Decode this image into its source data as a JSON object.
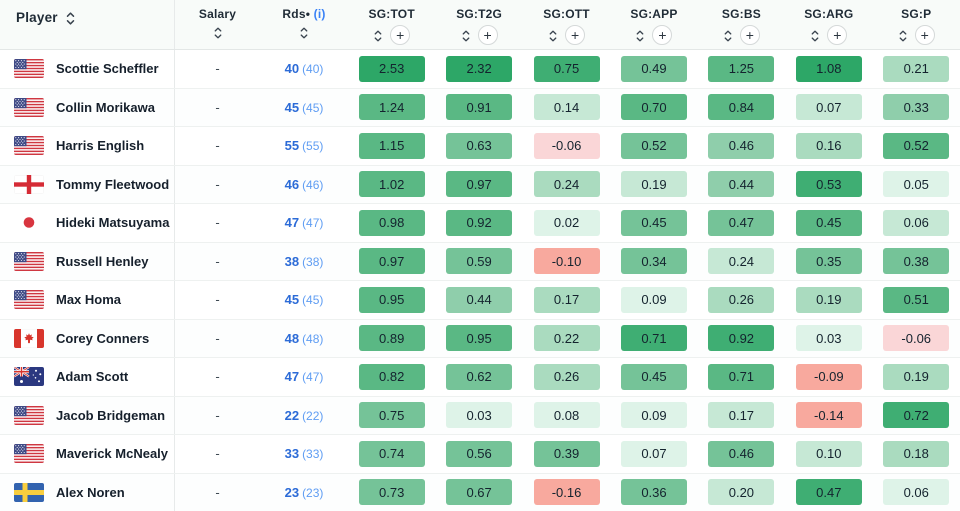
{
  "header": {
    "player_label": "Player",
    "salary_label": "Salary",
    "rds_label": "Rds•",
    "rds_info": "(i)",
    "sg_columns": [
      "SG:TOT",
      "SG:T2G",
      "SG:OTT",
      "SG:APP",
      "SG:BS",
      "SG:ARG",
      "SG:P"
    ]
  },
  "colors": {
    "green_scale": [
      "#2da767",
      "#3fae73",
      "#5ab884",
      "#75c398",
      "#8fceab",
      "#aadbbf",
      "#c6e8d5",
      "#def3e8"
    ],
    "negative_light": "#fad6d7",
    "negative_salmon": "#f8a99e",
    "rds_blue": "#2c6bd7",
    "rds_paren_blue": "#5f9df3",
    "info_blue": "#3b82f6"
  },
  "players": [
    {
      "name": "Scottie Scheffler",
      "flag": "us",
      "salary": "-",
      "rds": "40",
      "rds_paren": "(40)",
      "sg": [
        {
          "v": "2.53",
          "c": "#2da767"
        },
        {
          "v": "2.32",
          "c": "#2da767"
        },
        {
          "v": "0.75",
          "c": "#3fae73"
        },
        {
          "v": "0.49",
          "c": "#75c398"
        },
        {
          "v": "1.25",
          "c": "#5ab884"
        },
        {
          "v": "1.08",
          "c": "#2da767"
        },
        {
          "v": "0.21",
          "c": "#aadbbf"
        }
      ]
    },
    {
      "name": "Collin Morikawa",
      "flag": "us",
      "salary": "-",
      "rds": "45",
      "rds_paren": "(45)",
      "sg": [
        {
          "v": "1.24",
          "c": "#5ab884"
        },
        {
          "v": "0.91",
          "c": "#5ab884"
        },
        {
          "v": "0.14",
          "c": "#c6e8d5"
        },
        {
          "v": "0.70",
          "c": "#5ab884"
        },
        {
          "v": "0.84",
          "c": "#5ab884"
        },
        {
          "v": "0.07",
          "c": "#c6e8d5"
        },
        {
          "v": "0.33",
          "c": "#8fceab"
        }
      ]
    },
    {
      "name": "Harris English",
      "flag": "us",
      "salary": "-",
      "rds": "55",
      "rds_paren": "(55)",
      "sg": [
        {
          "v": "1.15",
          "c": "#5ab884"
        },
        {
          "v": "0.63",
          "c": "#75c398"
        },
        {
          "v": "-0.06",
          "c": "#fad6d7"
        },
        {
          "v": "0.52",
          "c": "#75c398"
        },
        {
          "v": "0.46",
          "c": "#8fceab"
        },
        {
          "v": "0.16",
          "c": "#aadbbf"
        },
        {
          "v": "0.52",
          "c": "#5ab884"
        }
      ]
    },
    {
      "name": "Tommy Fleetwood",
      "flag": "england",
      "salary": "-",
      "rds": "46",
      "rds_paren": "(46)",
      "sg": [
        {
          "v": "1.02",
          "c": "#5ab884"
        },
        {
          "v": "0.97",
          "c": "#5ab884"
        },
        {
          "v": "0.24",
          "c": "#aadbbf"
        },
        {
          "v": "0.19",
          "c": "#c6e8d5"
        },
        {
          "v": "0.44",
          "c": "#8fceab"
        },
        {
          "v": "0.53",
          "c": "#3fae73"
        },
        {
          "v": "0.05",
          "c": "#def3e8"
        }
      ]
    },
    {
      "name": "Hideki Matsuyama",
      "flag": "japan",
      "salary": "-",
      "rds": "47",
      "rds_paren": "(47)",
      "sg": [
        {
          "v": "0.98",
          "c": "#5ab884"
        },
        {
          "v": "0.92",
          "c": "#5ab884"
        },
        {
          "v": "0.02",
          "c": "#def3e8"
        },
        {
          "v": "0.45",
          "c": "#75c398"
        },
        {
          "v": "0.47",
          "c": "#75c398"
        },
        {
          "v": "0.45",
          "c": "#5ab884"
        },
        {
          "v": "0.06",
          "c": "#c6e8d5"
        }
      ]
    },
    {
      "name": "Russell Henley",
      "flag": "us",
      "salary": "-",
      "rds": "38",
      "rds_paren": "(38)",
      "sg": [
        {
          "v": "0.97",
          "c": "#5ab884"
        },
        {
          "v": "0.59",
          "c": "#75c398"
        },
        {
          "v": "-0.10",
          "c": "#f8a99e"
        },
        {
          "v": "0.34",
          "c": "#75c398"
        },
        {
          "v": "0.24",
          "c": "#c6e8d5"
        },
        {
          "v": "0.35",
          "c": "#75c398"
        },
        {
          "v": "0.38",
          "c": "#75c398"
        }
      ]
    },
    {
      "name": "Max Homa",
      "flag": "us",
      "salary": "-",
      "rds": "45",
      "rds_paren": "(45)",
      "sg": [
        {
          "v": "0.95",
          "c": "#5ab884"
        },
        {
          "v": "0.44",
          "c": "#8fceab"
        },
        {
          "v": "0.17",
          "c": "#aadbbf"
        },
        {
          "v": "0.09",
          "c": "#def3e8"
        },
        {
          "v": "0.26",
          "c": "#aadbbf"
        },
        {
          "v": "0.19",
          "c": "#aadbbf"
        },
        {
          "v": "0.51",
          "c": "#5ab884"
        }
      ]
    },
    {
      "name": "Corey Conners",
      "flag": "canada",
      "salary": "-",
      "rds": "48",
      "rds_paren": "(48)",
      "sg": [
        {
          "v": "0.89",
          "c": "#5ab884"
        },
        {
          "v": "0.95",
          "c": "#5ab884"
        },
        {
          "v": "0.22",
          "c": "#aadbbf"
        },
        {
          "v": "0.71",
          "c": "#3fae73"
        },
        {
          "v": "0.92",
          "c": "#3fae73"
        },
        {
          "v": "0.03",
          "c": "#def3e8"
        },
        {
          "v": "-0.06",
          "c": "#fad6d7"
        }
      ]
    },
    {
      "name": "Adam Scott",
      "flag": "australia",
      "salary": "-",
      "rds": "47",
      "rds_paren": "(47)",
      "sg": [
        {
          "v": "0.82",
          "c": "#5ab884"
        },
        {
          "v": "0.62",
          "c": "#75c398"
        },
        {
          "v": "0.26",
          "c": "#aadbbf"
        },
        {
          "v": "0.45",
          "c": "#75c398"
        },
        {
          "v": "0.71",
          "c": "#5ab884"
        },
        {
          "v": "-0.09",
          "c": "#f8a99e"
        },
        {
          "v": "0.19",
          "c": "#aadbbf"
        }
      ]
    },
    {
      "name": "Jacob Bridgeman",
      "flag": "us",
      "salary": "-",
      "rds": "22",
      "rds_paren": "(22)",
      "sg": [
        {
          "v": "0.75",
          "c": "#75c398"
        },
        {
          "v": "0.03",
          "c": "#def3e8"
        },
        {
          "v": "0.08",
          "c": "#def3e8"
        },
        {
          "v": "0.09",
          "c": "#def3e8"
        },
        {
          "v": "0.17",
          "c": "#c6e8d5"
        },
        {
          "v": "-0.14",
          "c": "#f8a99e"
        },
        {
          "v": "0.72",
          "c": "#3fae73"
        }
      ]
    },
    {
      "name": "Maverick McNealy",
      "flag": "us",
      "salary": "-",
      "rds": "33",
      "rds_paren": "(33)",
      "sg": [
        {
          "v": "0.74",
          "c": "#75c398"
        },
        {
          "v": "0.56",
          "c": "#75c398"
        },
        {
          "v": "0.39",
          "c": "#75c398"
        },
        {
          "v": "0.07",
          "c": "#def3e8"
        },
        {
          "v": "0.46",
          "c": "#75c398"
        },
        {
          "v": "0.10",
          "c": "#c6e8d5"
        },
        {
          "v": "0.18",
          "c": "#aadbbf"
        }
      ]
    },
    {
      "name": "Alex Noren",
      "flag": "sweden",
      "salary": "-",
      "rds": "23",
      "rds_paren": "(23)",
      "sg": [
        {
          "v": "0.73",
          "c": "#75c398"
        },
        {
          "v": "0.67",
          "c": "#75c398"
        },
        {
          "v": "-0.16",
          "c": "#f8a99e"
        },
        {
          "v": "0.36",
          "c": "#75c398"
        },
        {
          "v": "0.20",
          "c": "#c6e8d5"
        },
        {
          "v": "0.47",
          "c": "#3fae73"
        },
        {
          "v": "0.06",
          "c": "#def3e8"
        }
      ]
    }
  ]
}
